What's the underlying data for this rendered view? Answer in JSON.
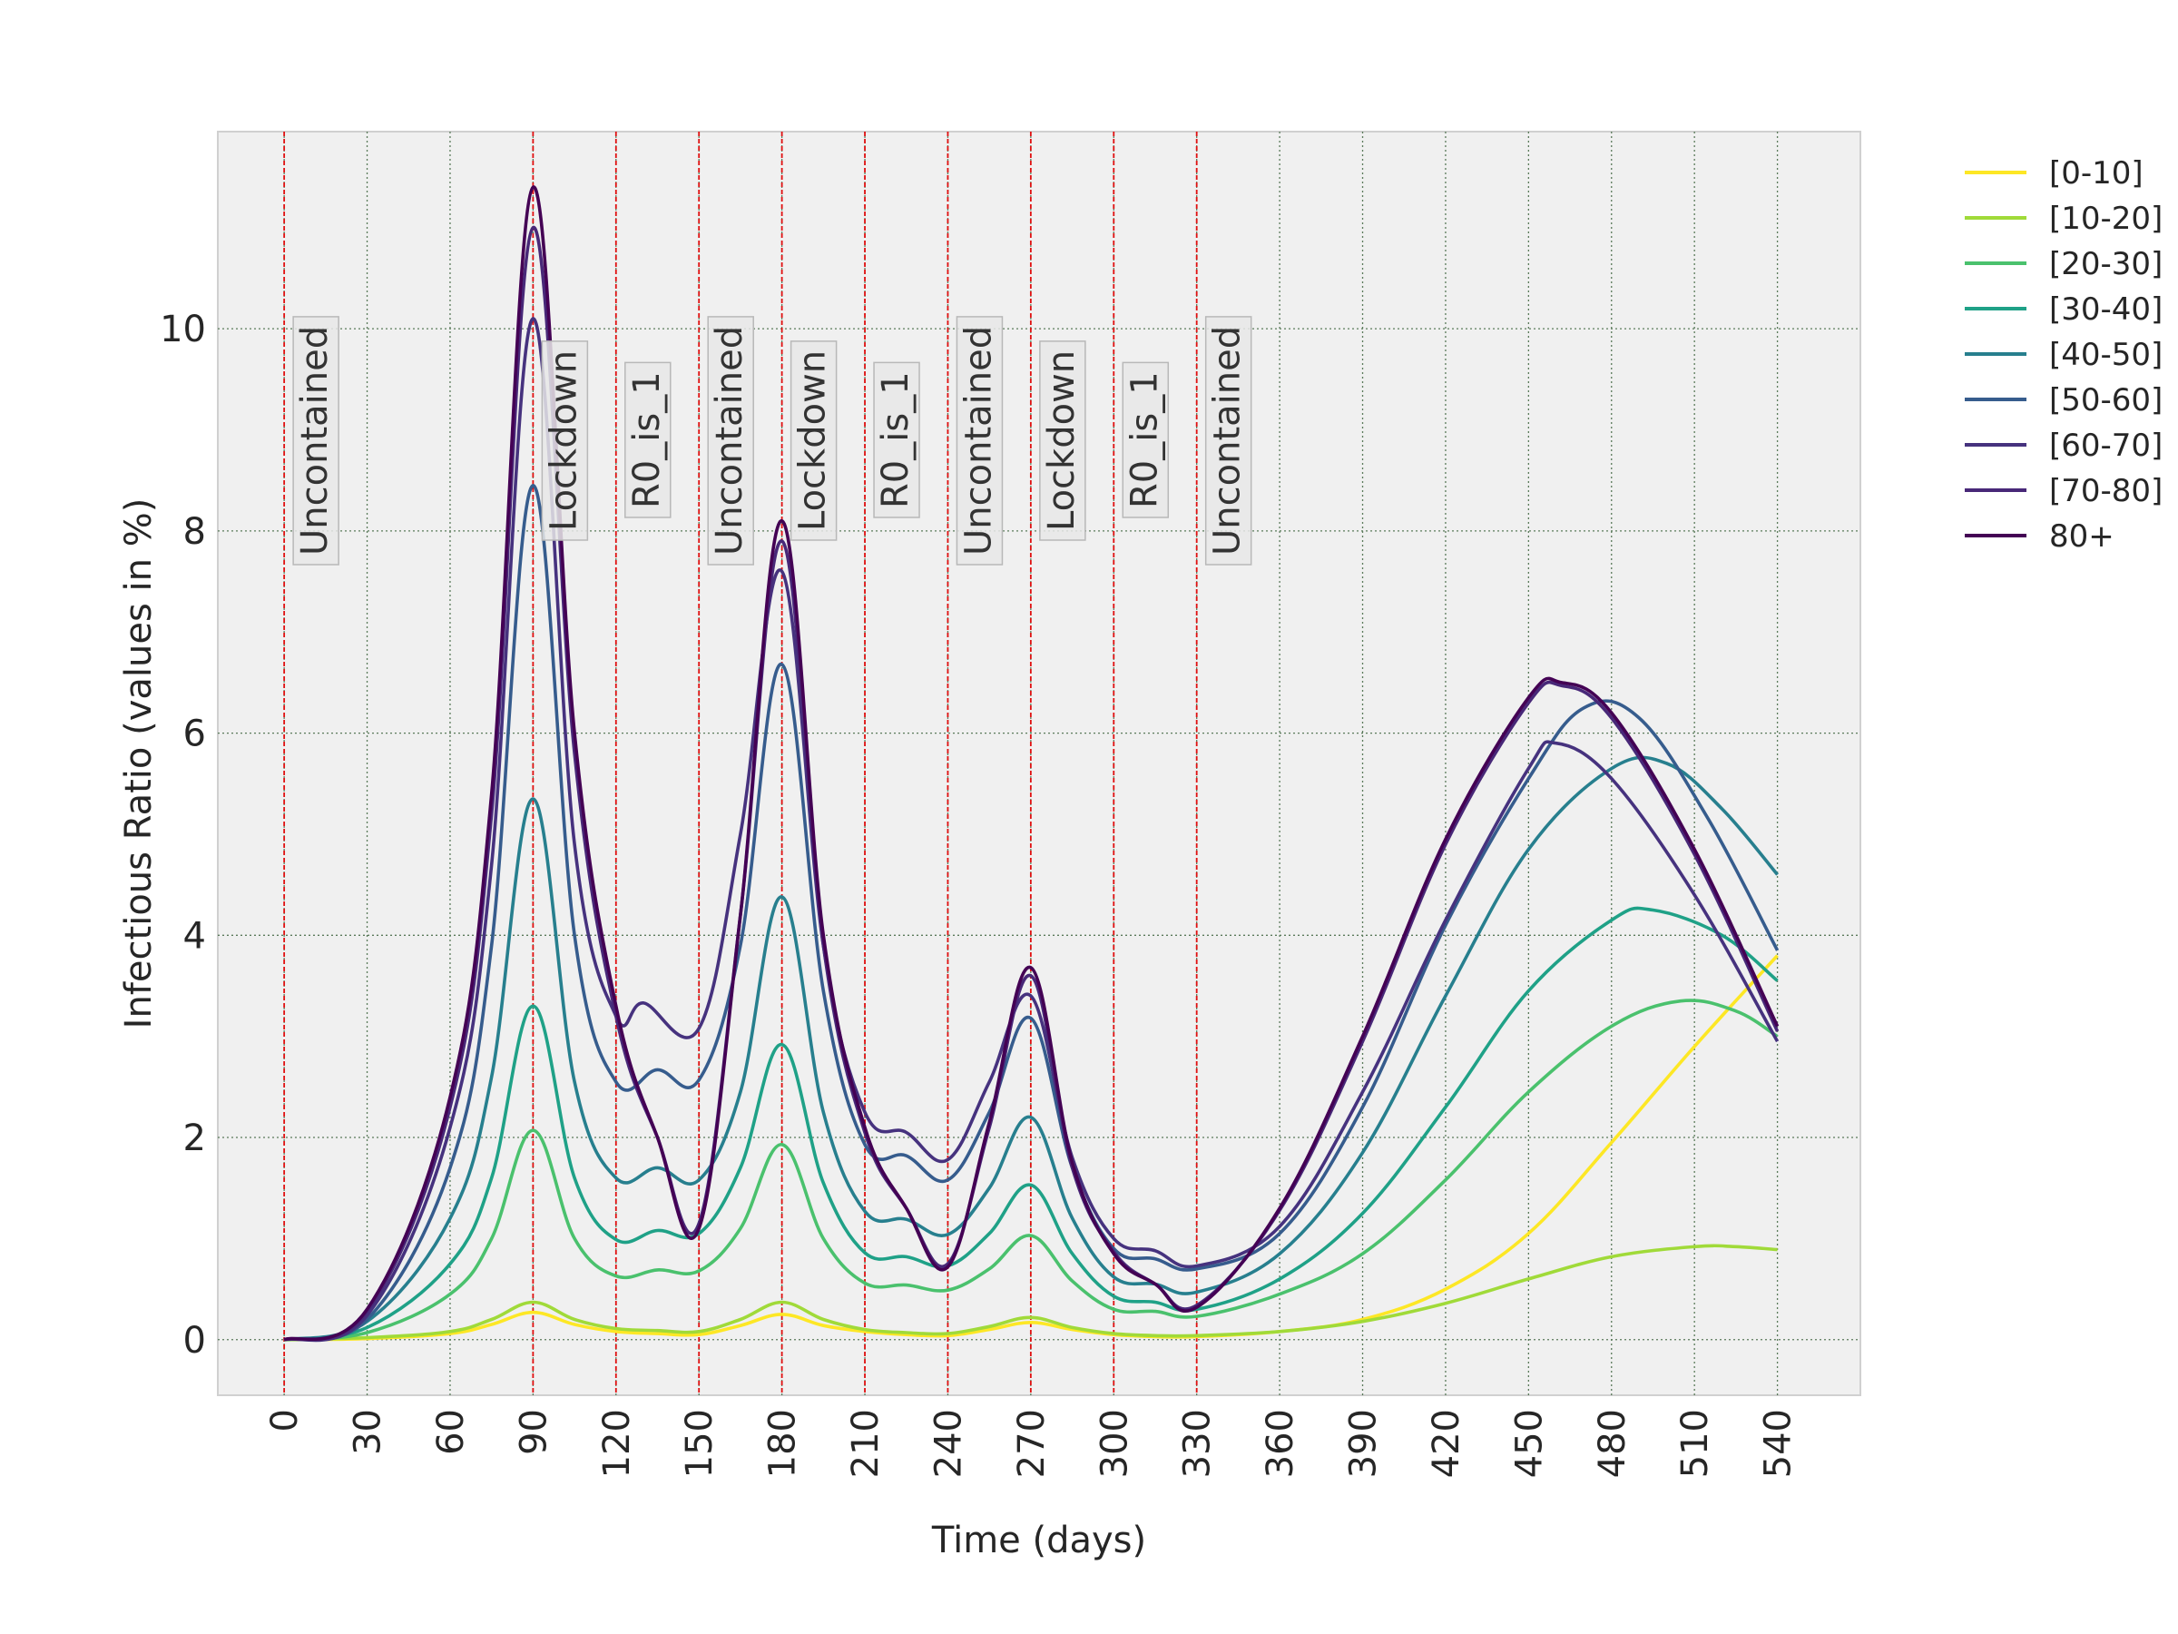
{
  "chart_data": {
    "type": "line",
    "title": "",
    "xlabel": "Time (days)",
    "ylabel": "Infectious Ratio (values in %)",
    "xlim": [
      -24,
      570
    ],
    "ylim": [
      -0.55,
      11.95
    ],
    "xticks": [
      0,
      30,
      60,
      90,
      120,
      150,
      180,
      210,
      240,
      270,
      300,
      330,
      360,
      390,
      420,
      450,
      480,
      510,
      540
    ],
    "yticks": [
      0,
      2,
      4,
      6,
      8,
      10
    ],
    "grid": true,
    "legend_position": "right-top",
    "phase_lines": [
      {
        "x": 0,
        "label": "Uncontained"
      },
      {
        "x": 90,
        "label": "Lockdown"
      },
      {
        "x": 120,
        "label": "R0_is_1"
      },
      {
        "x": 150,
        "label": "Uncontained"
      },
      {
        "x": 180,
        "label": "Lockdown"
      },
      {
        "x": 210,
        "label": "R0_is_1"
      },
      {
        "x": 240,
        "label": "Uncontained"
      },
      {
        "x": 270,
        "label": "Lockdown"
      },
      {
        "x": 300,
        "label": "R0_is_1"
      },
      {
        "x": 330,
        "label": "Uncontained"
      }
    ],
    "series": [
      {
        "name": "[0-10]",
        "color": "#fde725",
        "points": [
          [
            0,
            0
          ],
          [
            30,
            0.01
          ],
          [
            60,
            0.06
          ],
          [
            75,
            0.15
          ],
          [
            90,
            0.27
          ],
          [
            105,
            0.15
          ],
          [
            120,
            0.08
          ],
          [
            135,
            0.06
          ],
          [
            150,
            0.05
          ],
          [
            165,
            0.14
          ],
          [
            180,
            0.25
          ],
          [
            195,
            0.14
          ],
          [
            210,
            0.08
          ],
          [
            225,
            0.05
          ],
          [
            240,
            0.04
          ],
          [
            255,
            0.1
          ],
          [
            270,
            0.17
          ],
          [
            285,
            0.1
          ],
          [
            300,
            0.05
          ],
          [
            315,
            0.03
          ],
          [
            330,
            0.03
          ],
          [
            360,
            0.08
          ],
          [
            390,
            0.2
          ],
          [
            420,
            0.5
          ],
          [
            450,
            1.05
          ],
          [
            480,
            1.95
          ],
          [
            510,
            2.9
          ],
          [
            540,
            3.8
          ]
        ]
      },
      {
        "name": "[10-20]",
        "color": "#a0da39",
        "points": [
          [
            0,
            0
          ],
          [
            30,
            0.02
          ],
          [
            60,
            0.08
          ],
          [
            75,
            0.2
          ],
          [
            90,
            0.37
          ],
          [
            105,
            0.2
          ],
          [
            120,
            0.11
          ],
          [
            135,
            0.09
          ],
          [
            150,
            0.08
          ],
          [
            165,
            0.2
          ],
          [
            180,
            0.37
          ],
          [
            195,
            0.2
          ],
          [
            210,
            0.1
          ],
          [
            225,
            0.07
          ],
          [
            240,
            0.06
          ],
          [
            255,
            0.13
          ],
          [
            270,
            0.22
          ],
          [
            285,
            0.12
          ],
          [
            300,
            0.06
          ],
          [
            315,
            0.04
          ],
          [
            330,
            0.04
          ],
          [
            360,
            0.08
          ],
          [
            390,
            0.18
          ],
          [
            420,
            0.36
          ],
          [
            450,
            0.6
          ],
          [
            480,
            0.82
          ],
          [
            510,
            0.92
          ],
          [
            525,
            0.92
          ],
          [
            540,
            0.89
          ]
        ]
      },
      {
        "name": "[20-30]",
        "color": "#4ac16d",
        "points": [
          [
            0,
            0
          ],
          [
            30,
            0.07
          ],
          [
            60,
            0.45
          ],
          [
            75,
            1.0
          ],
          [
            90,
            2.07
          ],
          [
            105,
            1.0
          ],
          [
            120,
            0.63
          ],
          [
            135,
            0.69
          ],
          [
            150,
            0.68
          ],
          [
            165,
            1.1
          ],
          [
            180,
            1.93
          ],
          [
            195,
            1.0
          ],
          [
            210,
            0.56
          ],
          [
            225,
            0.54
          ],
          [
            240,
            0.49
          ],
          [
            255,
            0.7
          ],
          [
            270,
            1.03
          ],
          [
            285,
            0.58
          ],
          [
            300,
            0.3
          ],
          [
            315,
            0.28
          ],
          [
            330,
            0.23
          ],
          [
            360,
            0.45
          ],
          [
            390,
            0.85
          ],
          [
            420,
            1.58
          ],
          [
            450,
            2.45
          ],
          [
            480,
            3.1
          ],
          [
            505,
            3.35
          ],
          [
            525,
            3.25
          ],
          [
            540,
            3.0
          ]
        ]
      },
      {
        "name": "[30-40]",
        "color": "#1fa187",
        "points": [
          [
            0,
            0
          ],
          [
            30,
            0.12
          ],
          [
            60,
            0.75
          ],
          [
            75,
            1.6
          ],
          [
            90,
            3.3
          ],
          [
            105,
            1.6
          ],
          [
            120,
            0.99
          ],
          [
            135,
            1.08
          ],
          [
            150,
            1.05
          ],
          [
            165,
            1.7
          ],
          [
            180,
            2.92
          ],
          [
            195,
            1.55
          ],
          [
            210,
            0.86
          ],
          [
            225,
            0.82
          ],
          [
            240,
            0.73
          ],
          [
            255,
            1.05
          ],
          [
            270,
            1.53
          ],
          [
            285,
            0.85
          ],
          [
            300,
            0.43
          ],
          [
            315,
            0.37
          ],
          [
            330,
            0.3
          ],
          [
            360,
            0.6
          ],
          [
            390,
            1.25
          ],
          [
            420,
            2.3
          ],
          [
            450,
            3.45
          ],
          [
            480,
            4.15
          ],
          [
            495,
            4.25
          ],
          [
            520,
            4.0
          ],
          [
            540,
            3.55
          ]
        ]
      },
      {
        "name": "[40-50]",
        "color": "#277f8e",
        "points": [
          [
            0,
            0
          ],
          [
            30,
            0.18
          ],
          [
            60,
            1.2
          ],
          [
            75,
            2.6
          ],
          [
            90,
            5.35
          ],
          [
            105,
            2.55
          ],
          [
            120,
            1.6
          ],
          [
            135,
            1.7
          ],
          [
            150,
            1.58
          ],
          [
            165,
            2.45
          ],
          [
            180,
            4.38
          ],
          [
            195,
            2.25
          ],
          [
            210,
            1.27
          ],
          [
            225,
            1.19
          ],
          [
            240,
            1.04
          ],
          [
            255,
            1.5
          ],
          [
            270,
            2.2
          ],
          [
            285,
            1.2
          ],
          [
            300,
            0.62
          ],
          [
            315,
            0.55
          ],
          [
            330,
            0.47
          ],
          [
            360,
            0.85
          ],
          [
            390,
            1.85
          ],
          [
            420,
            3.4
          ],
          [
            450,
            4.85
          ],
          [
            480,
            5.65
          ],
          [
            500,
            5.7
          ],
          [
            520,
            5.25
          ],
          [
            540,
            4.6
          ]
        ]
      },
      {
        "name": "[50-60]",
        "color": "#365c8d",
        "points": [
          [
            0,
            0
          ],
          [
            30,
            0.2
          ],
          [
            60,
            1.7
          ],
          [
            75,
            3.9
          ],
          [
            90,
            8.45
          ],
          [
            105,
            4.0
          ],
          [
            120,
            2.55
          ],
          [
            135,
            2.67
          ],
          [
            150,
            2.57
          ],
          [
            165,
            3.9
          ],
          [
            180,
            6.68
          ],
          [
            195,
            3.45
          ],
          [
            210,
            1.93
          ],
          [
            225,
            1.82
          ],
          [
            240,
            1.58
          ],
          [
            255,
            2.25
          ],
          [
            270,
            3.18
          ],
          [
            285,
            1.7
          ],
          [
            300,
            0.9
          ],
          [
            315,
            0.8
          ],
          [
            330,
            0.7
          ],
          [
            360,
            1.05
          ],
          [
            390,
            2.3
          ],
          [
            420,
            4.1
          ],
          [
            450,
            5.55
          ],
          [
            470,
            6.25
          ],
          [
            490,
            6.15
          ],
          [
            515,
            5.15
          ],
          [
            540,
            3.85
          ]
        ]
      },
      {
        "name": "[60-70]",
        "color": "#46327e",
        "points": [
          [
            0,
            0
          ],
          [
            30,
            0.24
          ],
          [
            60,
            2.1
          ],
          [
            75,
            4.7
          ],
          [
            90,
            10.1
          ],
          [
            105,
            4.9
          ],
          [
            120,
            3.2
          ],
          [
            130,
            3.33
          ],
          [
            150,
            3.08
          ],
          [
            165,
            5.0
          ],
          [
            180,
            7.6
          ],
          [
            195,
            3.9
          ],
          [
            210,
            2.25
          ],
          [
            225,
            2.05
          ],
          [
            240,
            1.78
          ],
          [
            255,
            2.55
          ],
          [
            270,
            3.4
          ],
          [
            285,
            1.8
          ],
          [
            300,
            1.0
          ],
          [
            315,
            0.88
          ],
          [
            330,
            0.73
          ],
          [
            360,
            1.12
          ],
          [
            390,
            2.45
          ],
          [
            420,
            4.15
          ],
          [
            450,
            5.65
          ],
          [
            460,
            5.9
          ],
          [
            480,
            5.55
          ],
          [
            510,
            4.4
          ],
          [
            540,
            2.95
          ]
        ]
      },
      {
        "name": "[70-80]",
        "color": "#482878",
        "points": [
          [
            0,
            0
          ],
          [
            30,
            0.28
          ],
          [
            60,
            2.3
          ],
          [
            75,
            5.2
          ],
          [
            90,
            11.0
          ],
          [
            105,
            5.8
          ],
          [
            120,
            3.2
          ],
          [
            135,
            2.0
          ],
          [
            150,
            1.15
          ],
          [
            165,
            4.2
          ],
          [
            180,
            7.9
          ],
          [
            195,
            3.9
          ],
          [
            210,
            2.05
          ],
          [
            225,
            1.3
          ],
          [
            240,
            0.75
          ],
          [
            255,
            2.1
          ],
          [
            270,
            3.6
          ],
          [
            285,
            1.7
          ],
          [
            300,
            0.87
          ],
          [
            315,
            0.55
          ],
          [
            330,
            0.34
          ],
          [
            360,
            1.28
          ],
          [
            390,
            2.95
          ],
          [
            420,
            4.9
          ],
          [
            450,
            6.3
          ],
          [
            462,
            6.47
          ],
          [
            480,
            6.15
          ],
          [
            510,
            4.8
          ],
          [
            540,
            3.05
          ]
        ]
      },
      {
        "name": "80+",
        "color": "#440154",
        "points": [
          [
            0,
            0
          ],
          [
            30,
            0.3
          ],
          [
            60,
            2.4
          ],
          [
            75,
            5.4
          ],
          [
            90,
            11.4
          ],
          [
            105,
            6.0
          ],
          [
            120,
            3.3
          ],
          [
            135,
            2.0
          ],
          [
            150,
            1.1
          ],
          [
            165,
            4.2
          ],
          [
            180,
            8.1
          ],
          [
            195,
            4.0
          ],
          [
            210,
            2.1
          ],
          [
            225,
            1.3
          ],
          [
            240,
            0.72
          ],
          [
            255,
            2.15
          ],
          [
            270,
            3.68
          ],
          [
            285,
            1.75
          ],
          [
            300,
            0.85
          ],
          [
            315,
            0.55
          ],
          [
            330,
            0.32
          ],
          [
            360,
            1.3
          ],
          [
            390,
            3.0
          ],
          [
            420,
            4.95
          ],
          [
            450,
            6.35
          ],
          [
            462,
            6.5
          ],
          [
            480,
            6.2
          ],
          [
            510,
            4.85
          ],
          [
            540,
            3.1
          ]
        ]
      }
    ]
  }
}
